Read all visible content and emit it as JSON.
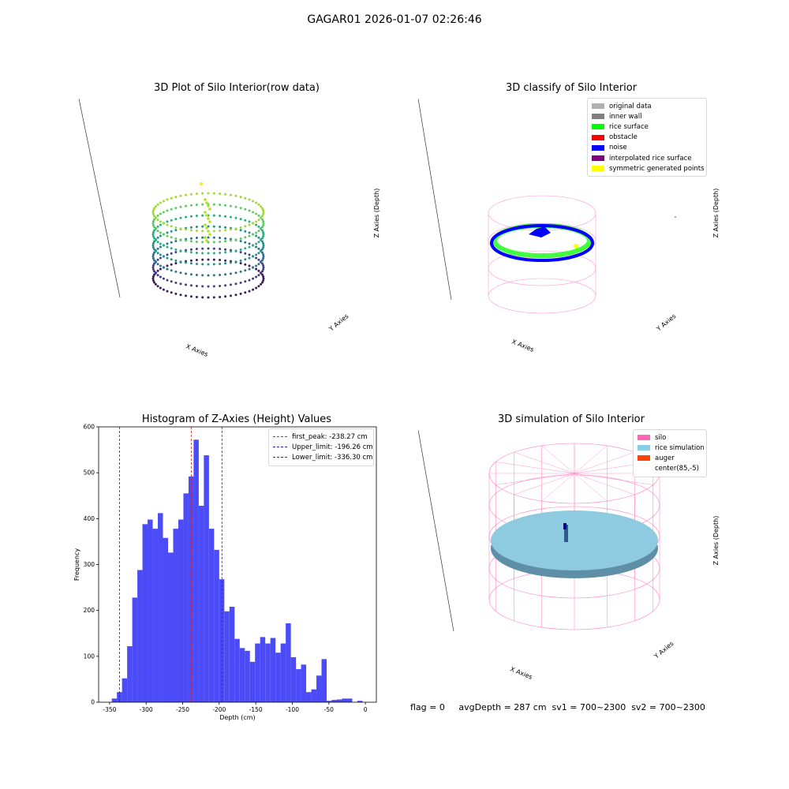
{
  "suptitle": "GAGAR01 2026-01-07 02:26:46",
  "colors": {
    "hist_bar": "#4b4bf7",
    "first_peak": "#e02020",
    "limits": "#2020d0",
    "silo_wire": "#ff7fbf",
    "rice_sim": "#8ecbe0",
    "auger": "#ff4500",
    "rice_surface": "#00ff00",
    "noise": "#0000ff"
  },
  "panel1": {
    "title": "3D Plot of Silo Interior(row data)",
    "xlabel": "X Axies",
    "ylabel": "Y Axies",
    "zlabel": "Z Axies (Depth)",
    "xticks": [
      "-500",
      "-250",
      "0",
      "250",
      "500",
      "750",
      "1000",
      "1250"
    ],
    "yticks": [
      "-500",
      "0",
      "500",
      "1000",
      "1500"
    ],
    "zticks": [
      "0",
      "-50",
      "-100",
      "-150",
      "-200",
      "-250",
      "-300",
      "-350"
    ]
  },
  "panel2": {
    "title": "3D classify of Silo Interior",
    "xlabel": "X Axies",
    "ylabel": "Y Axies",
    "zlabel": "Z Axies (Depth)",
    "xticks": [
      "-750",
      "-500",
      "-250",
      "0",
      "250",
      "500",
      "750",
      "1000",
      "1250"
    ],
    "yticks": [
      "-500",
      "-250",
      "0",
      "250",
      "500",
      "750",
      "1000",
      "1250",
      "1500"
    ],
    "zticks": [
      "500",
      "250",
      "0",
      "-250",
      "-500",
      "-750",
      "-1000",
      "-1250"
    ],
    "legend": [
      {
        "label": "original data",
        "color": "#b0b0b0"
      },
      {
        "label": "inner wall",
        "color": "#808080"
      },
      {
        "label": "rice surface",
        "color": "#00ff00"
      },
      {
        "label": "obstacle",
        "color": "#ff0000"
      },
      {
        "label": "noise",
        "color": "#0000ff"
      },
      {
        "label": "interpolated rice surface",
        "color": "#800080"
      },
      {
        "label": "symmetric generated points",
        "color": "#ffff00"
      }
    ]
  },
  "panel3": {
    "title": "Histogram of Z-Axies (Height) Values",
    "legend": [
      {
        "label": "first_peak: -238.27 cm",
        "color": "#e02020"
      },
      {
        "label": "Upper_limit: -196.26 cm",
        "color": "#2020d0"
      },
      {
        "label": "Lower_limit: -336.30 cm",
        "color": "#2020d0"
      }
    ]
  },
  "panel4": {
    "title": "3D simulation of Silo Interior",
    "xlabel": "X Axies",
    "ylabel": "Y Axies",
    "zlabel": "Z Axies (Depth)",
    "xticks": [
      "-400",
      "-200",
      "0",
      "200",
      "400",
      "600"
    ],
    "yticks": [
      "-600",
      "-400",
      "-200",
      "0",
      "200",
      "400",
      "600"
    ],
    "zticks": [
      "400",
      "200",
      "0",
      "-200",
      "-400",
      "-600",
      "-800"
    ],
    "legend": [
      {
        "label": "silo",
        "color": "#ff69b4"
      },
      {
        "label": "rice simulation",
        "color": "#87ceeb"
      },
      {
        "label": "auger",
        "color": "#ff4500"
      },
      {
        "label": "center(85,-5)",
        "color": "none"
      }
    ]
  },
  "status": {
    "text": "flag = 0     avgDepth = 287 cm  sv1 = 700~2300  sv2 = 700~2300"
  },
  "chart_data": {
    "type": "bar",
    "title": "Histogram of Z-Axies (Height) Values",
    "xlabel": "Depth (cm)",
    "ylabel": "Frequency",
    "xlim": [
      -365,
      15
    ],
    "ylim": [
      0,
      600
    ],
    "xticks": [
      -350,
      -300,
      -250,
      -200,
      -150,
      -100,
      -50,
      0
    ],
    "yticks": [
      0,
      100,
      200,
      300,
      400,
      500,
      600
    ],
    "bin_width": 7,
    "bin_starts": [
      -347,
      -340,
      -333,
      -326,
      -319,
      -312,
      -305,
      -298,
      -291,
      -284,
      -277,
      -270,
      -263,
      -256,
      -249,
      -242,
      -235,
      -228,
      -221,
      -214,
      -207,
      -200,
      -193,
      -186,
      -179,
      -172,
      -165,
      -158,
      -151,
      -144,
      -137,
      -130,
      -123,
      -116,
      -109,
      -102,
      -95,
      -88,
      -81,
      -74,
      -67,
      -60,
      -53,
      -46,
      -39,
      -32,
      -25,
      -18,
      -11,
      -4
    ],
    "values": [
      8,
      22,
      52,
      122,
      228,
      288,
      388,
      398,
      378,
      412,
      358,
      326,
      378,
      398,
      455,
      492,
      572,
      428,
      538,
      378,
      332,
      268,
      198,
      208,
      138,
      118,
      112,
      88,
      128,
      142,
      128,
      140,
      108,
      128,
      172,
      98,
      72,
      82,
      22,
      28,
      58,
      94,
      3,
      5,
      6,
      8,
      8,
      0,
      3,
      0
    ],
    "lines": [
      {
        "name": "first_peak",
        "x": -238.27
      },
      {
        "name": "Upper_limit",
        "x": -196.26
      },
      {
        "name": "Lower_limit",
        "x": -336.3
      }
    ]
  }
}
